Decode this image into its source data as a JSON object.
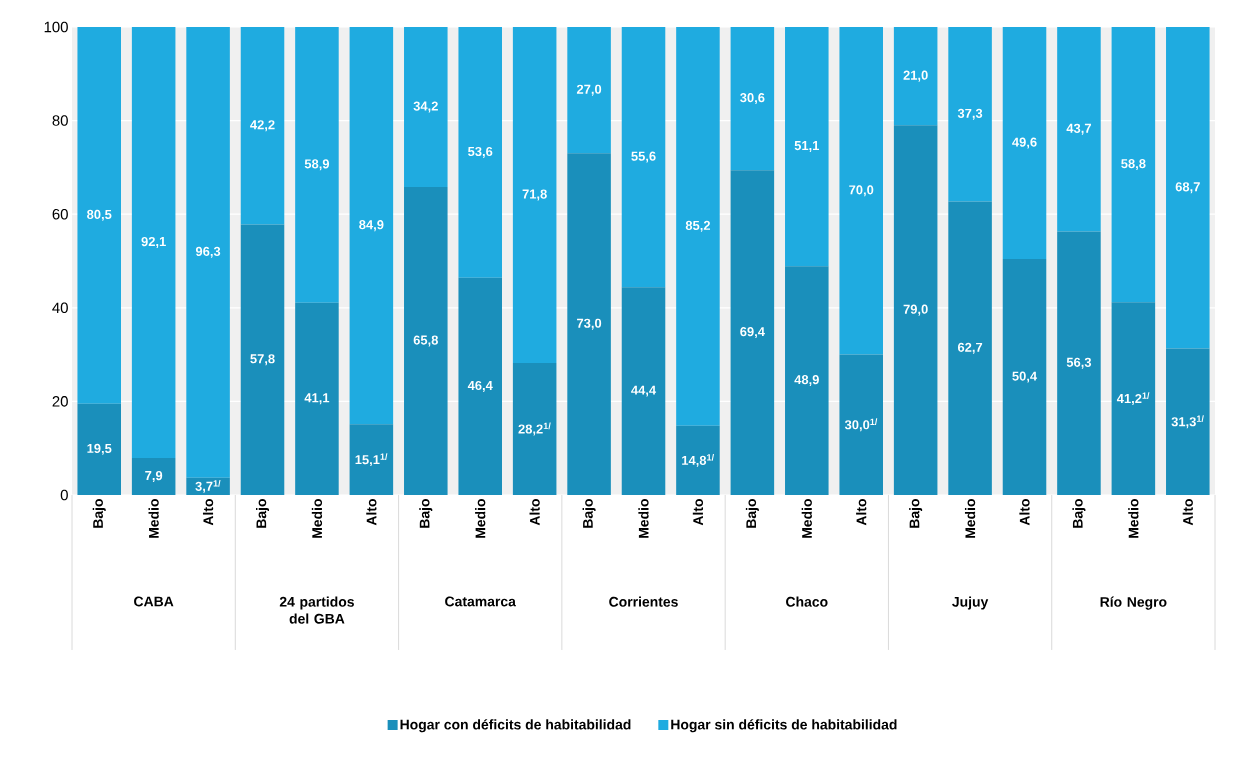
{
  "chart_data": {
    "type": "bar",
    "stacked": true,
    "categories": [
      "Bajo",
      "Medio",
      "Alto",
      "Bajo",
      "Medio",
      "Alto",
      "Bajo",
      "Medio",
      "Alto",
      "Bajo",
      "Medio",
      "Alto",
      "Bajo",
      "Medio",
      "Alto",
      "Bajo",
      "Medio",
      "Alto",
      "Bajo",
      "Medio",
      "Alto"
    ],
    "annotations": [
      "CABA",
      "24 partidos del GBA",
      "Catamarca",
      "Corrientes",
      "Chaco",
      "Jujuy",
      "Río Negro"
    ],
    "series": [
      {
        "name": "Hogar con déficits de habitabilidad",
        "color": "#1a8fbb",
        "values": [
          19.5,
          7.9,
          3.7,
          57.8,
          41.1,
          15.1,
          65.8,
          46.4,
          28.2,
          73.0,
          44.4,
          14.8,
          69.4,
          48.9,
          30.0,
          79.0,
          62.7,
          50.4,
          56.3,
          41.2,
          31.3
        ],
        "value_labels": [
          "19,5",
          "7,9",
          "3,7$^{1/}$",
          "57,8",
          "41,1",
          "15,1$^{1/}$",
          "65,8",
          "46,4",
          "28,2$^{1/}$",
          "73,0",
          "44,4",
          "14,8$^{1/}$",
          "69,4",
          "48,9",
          "30,0$^{1/}$",
          "79,0",
          "62,7",
          "50,4",
          "56,3",
          "41,2$^{1/}$",
          "31,3$^{1/}$"
        ]
      },
      {
        "name": "Hogar sin déficits de habitabilidad",
        "color": "#1fabe0",
        "values": [
          80.5,
          92.1,
          96.3,
          42.2,
          58.9,
          84.9,
          34.2,
          53.6,
          71.8,
          27.0,
          55.6,
          85.2,
          30.6,
          51.1,
          70.0,
          21.0,
          37.3,
          49.6,
          43.7,
          58.8,
          68.7
        ],
        "value_labels": [
          "80,5",
          "92,1",
          "96,3",
          "42,2",
          "58,9",
          "84,9",
          "34,2",
          "53,6",
          "71,8",
          "27,0",
          "55,6",
          "85,2",
          "30,6",
          "51,1",
          "70,0",
          "21,0",
          "37,3",
          "49,6",
          "43,7",
          "58,8",
          "68,7"
        ]
      }
    ],
    "ylim": [
      0,
      100
    ],
    "yticks": [
      0,
      20,
      40,
      60,
      80,
      100
    ],
    "grid": "y",
    "legend": "bottom"
  }
}
